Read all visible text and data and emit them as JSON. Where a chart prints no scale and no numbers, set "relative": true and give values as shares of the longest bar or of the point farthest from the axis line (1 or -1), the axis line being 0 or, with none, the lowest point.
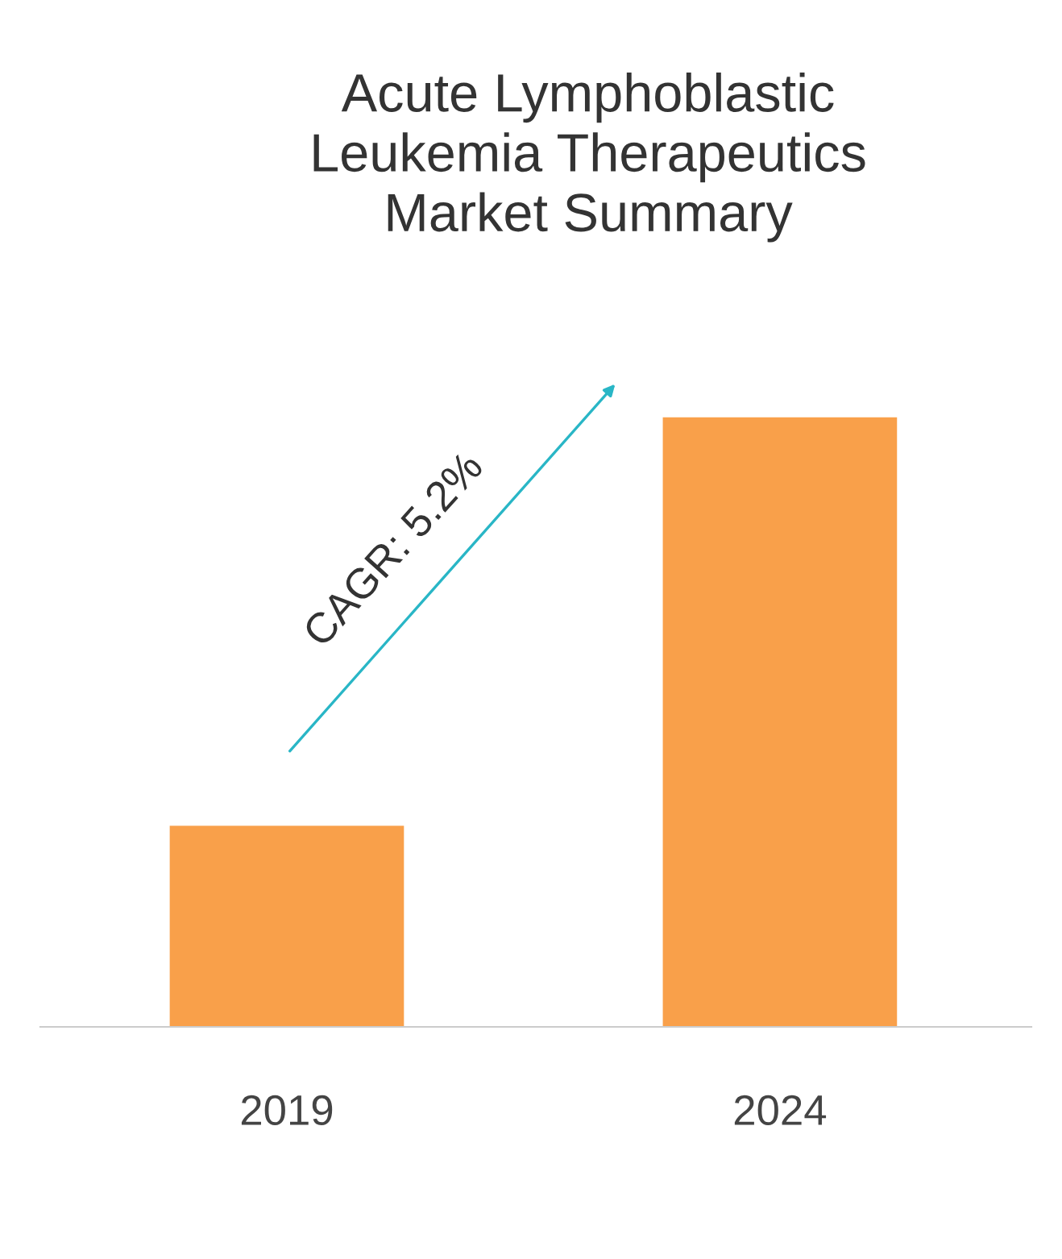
{
  "chart_data": {
    "type": "bar",
    "title": "Acute Lymphoblastic\nLeukemia Therapeutics\nMarket Summary",
    "categories": [
      "2019",
      "2024"
    ],
    "values": [
      0.33,
      1
    ],
    "color": "#f9a04a",
    "relative": true,
    "annotations": [
      "CAGR: 5.2%"
    ],
    "grid": false,
    "legend": false
  }
}
